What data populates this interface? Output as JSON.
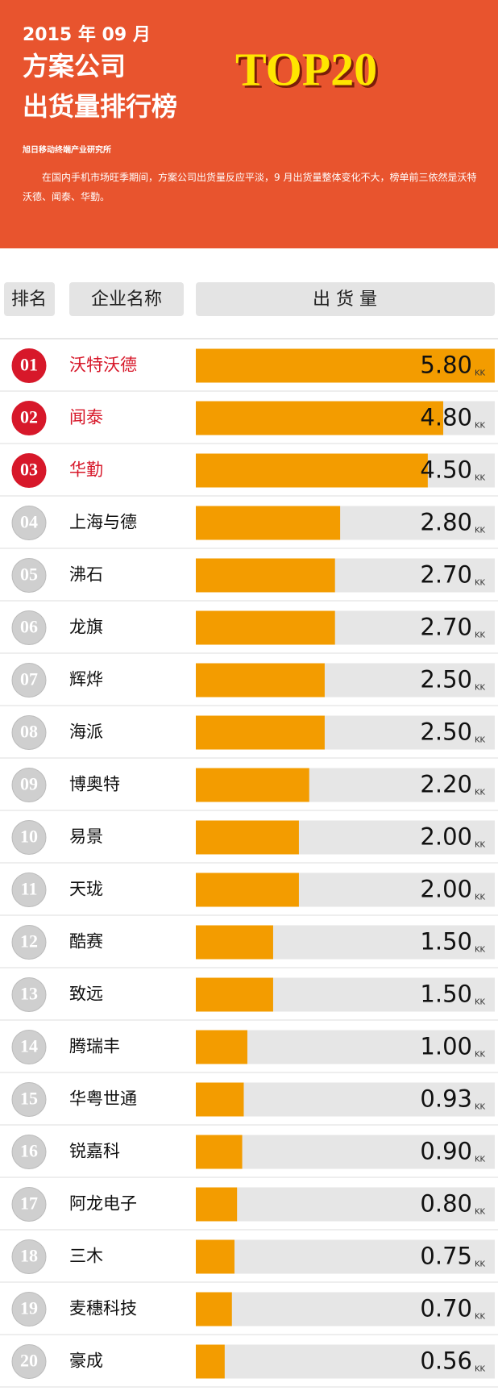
{
  "header": {
    "date": "2015 年 09 月",
    "title_line1": "方案公司",
    "title_line2": "出货量排行榜",
    "badge": "TOP20",
    "source": "旭日移动终端产业研究所",
    "description": "在国内手机市场旺季期间，方案公司出货量反应平淡，9 月出货量整体变化不大，榜单前三依然是沃特沃德、闻泰、华勤。"
  },
  "chart_data": {
    "type": "bar",
    "orientation": "horizontal",
    "column_headers": [
      "排名",
      "企业名称",
      "出 货 量"
    ],
    "ranks": [
      "01",
      "02",
      "03",
      "04",
      "05",
      "06",
      "07",
      "08",
      "09",
      "10",
      "11",
      "12",
      "13",
      "14",
      "15",
      "16",
      "17",
      "18",
      "19",
      "20"
    ],
    "categories": [
      "沃特沃德",
      "闻泰",
      "华勤",
      "上海与德",
      "沸石",
      "龙旗",
      "辉烨",
      "海派",
      "博奥特",
      "易景",
      "天珑",
      "酷赛",
      "致远",
      "腾瑞丰",
      "华粤世通",
      "锐嘉科",
      "阿龙电子",
      "三木",
      "麦穗科技",
      "豪成"
    ],
    "values": [
      5.8,
      4.8,
      4.5,
      2.8,
      2.7,
      2.7,
      2.5,
      2.5,
      2.2,
      2.0,
      2.0,
      1.5,
      1.5,
      1.0,
      0.93,
      0.9,
      0.8,
      0.75,
      0.7,
      0.56
    ],
    "value_labels": [
      "5.80",
      "4.80",
      "4.50",
      "2.80",
      "2.70",
      "2.70",
      "2.50",
      "2.50",
      "2.20",
      "2.00",
      "2.00",
      "1.50",
      "1.50",
      "1.00",
      "0.93",
      "0.90",
      "0.80",
      "0.75",
      "0.70",
      "0.56"
    ],
    "unit": "KK",
    "color": "#f39c00",
    "track_color": "#e6e6e6"
  }
}
